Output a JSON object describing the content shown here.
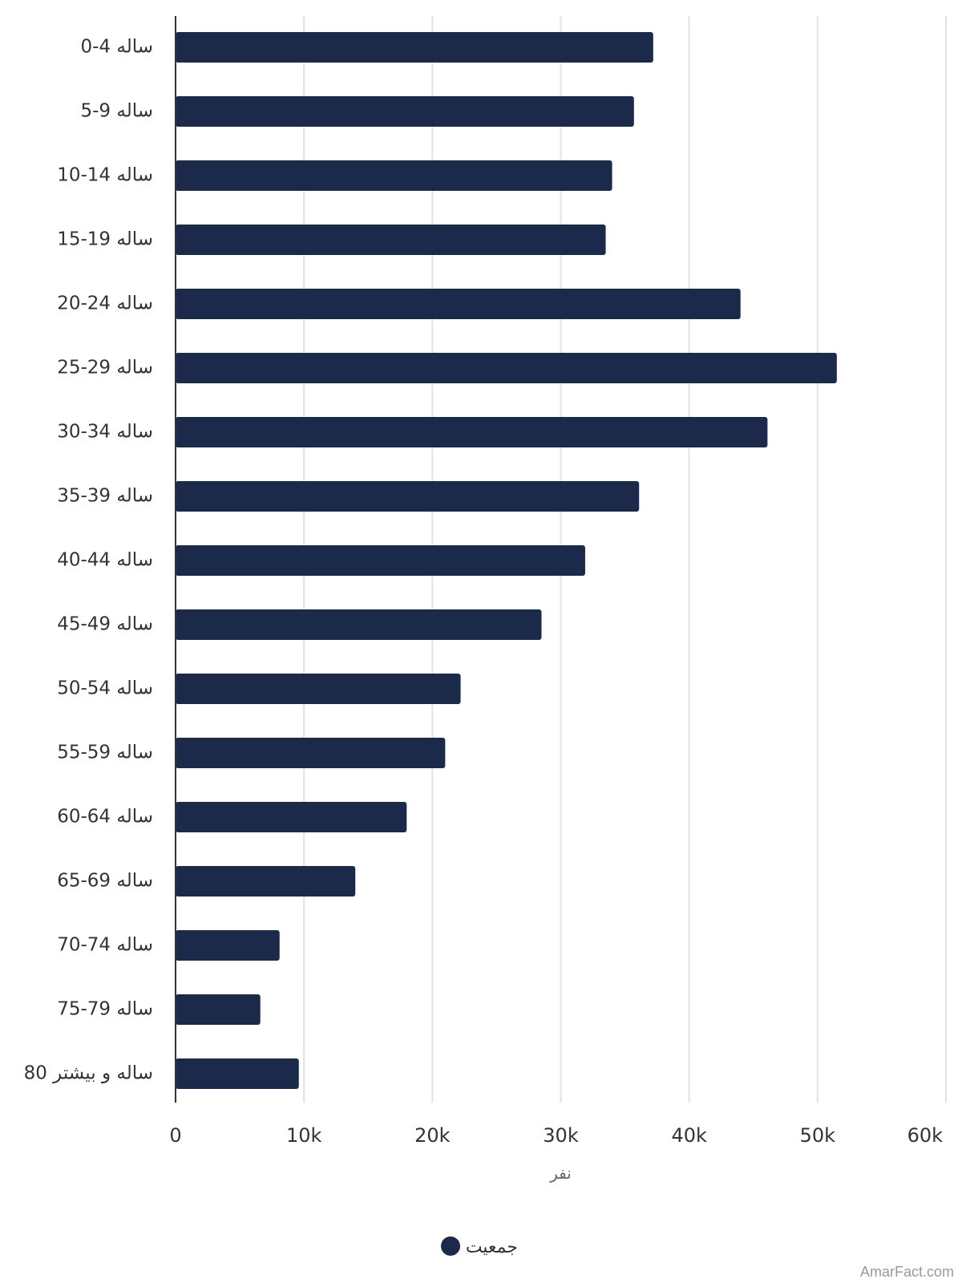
{
  "chart_data": {
    "type": "bar",
    "orientation": "horizontal",
    "categories": [
      "0-4 ساله",
      "5-9 ساله",
      "10-14 ساله",
      "15-19 ساله",
      "20-24 ساله",
      "25-29 ساله",
      "30-34 ساله",
      "35-39 ساله",
      "40-44 ساله",
      "45-49 ساله",
      "50-54 ساله",
      "55-59 ساله",
      "60-64 ساله",
      "65-69 ساله",
      "70-74 ساله",
      "75-79 ساله",
      "80 ساله و بیشتر"
    ],
    "series": [
      {
        "name": "جمعیت",
        "color": "#1b2a4a",
        "values": [
          37200,
          35700,
          34000,
          33500,
          44000,
          51500,
          46100,
          36100,
          31900,
          28500,
          22200,
          21000,
          18000,
          14000,
          8100,
          6600,
          9600
        ]
      }
    ],
    "xlim": [
      0,
      60000
    ],
    "x_ticks": [
      {
        "value": 0,
        "label": "0"
      },
      {
        "value": 10000,
        "label": "10k"
      },
      {
        "value": 20000,
        "label": "20k"
      },
      {
        "value": 30000,
        "label": "30k"
      },
      {
        "value": 40000,
        "label": "40k"
      },
      {
        "value": 50000,
        "label": "50k"
      },
      {
        "value": 60000,
        "label": "60k"
      }
    ],
    "xlabel": "نفر",
    "ylabel": "",
    "title": "",
    "grid": "vertical",
    "legend_position": "bottom-center"
  },
  "credit": "AmarFact.com"
}
